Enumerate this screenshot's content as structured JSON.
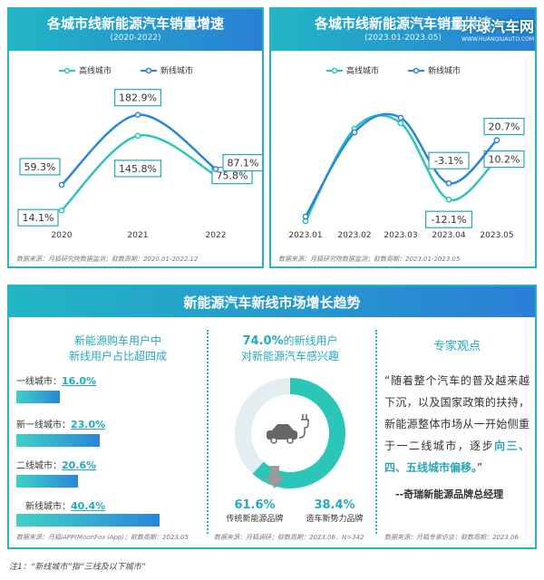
{
  "chart_data": [
    {
      "type": "line",
      "title": "各城市线新能源汽车销量增速",
      "subtitle": "(2020-2022)",
      "categories": [
        "2020",
        "2021",
        "2022"
      ],
      "series": [
        {
          "name": "高线城市",
          "values": [
            14.1,
            145.8,
            75.8
          ],
          "labels": [
            "14.1%",
            "145.8%",
            "75.8%"
          ],
          "color": "#2cc6b8"
        },
        {
          "name": "新线城市",
          "values": [
            59.3,
            182.9,
            87.1
          ],
          "labels": [
            "59.3%",
            "182.9%",
            "87.1%"
          ],
          "color": "#2a86d8"
        }
      ],
      "source": "数据来源：月狐研究院数据监测；取数周期：2020.01-2022.12"
    },
    {
      "type": "line",
      "title": "各城市线新能源汽车销量增速",
      "subtitle": "(2023.01-2023.05)",
      "categories": [
        "2023.01",
        "2023.02",
        "2023.03",
        "2023.04",
        "2023.05"
      ],
      "series": [
        {
          "name": "高线城市",
          "values": [
            null,
            null,
            null,
            -12.1,
            10.2
          ],
          "labels": [
            "",
            "",
            "",
            "-12.1%",
            "10.2%"
          ],
          "color": "#2cc6b8"
        },
        {
          "name": "新线城市",
          "values": [
            null,
            null,
            null,
            -3.1,
            20.7
          ],
          "labels": [
            "",
            "",
            "",
            "-3.1%",
            "20.7%"
          ],
          "color": "#2a86d8"
        }
      ],
      "source": "数据来源：月狐研究院数据监测；取数周期：2023.01-2023.05"
    },
    {
      "type": "bar",
      "title": "新能源购车用户中新线用户占比超四成",
      "categories": [
        "一线城市",
        "新一线城市",
        "二线城市",
        "新线城市"
      ],
      "values": [
        16.0,
        23.0,
        20.6,
        40.4
      ],
      "labels": [
        "16.0%",
        "23.0%",
        "20.6%",
        "40.4%"
      ],
      "source": "数据来源：月狐iAPP(MoonFox iApp)；取数周期：2023.05"
    },
    {
      "type": "pie",
      "title_highlight": "74.0%",
      "title_rest": "的新线用户",
      "title_line2": "对新能源汽车感兴趣",
      "categories": [
        "传统新能源品牌",
        "造车新势力品牌"
      ],
      "values": [
        61.6,
        38.4
      ],
      "labels": [
        "61.6%",
        "38.4%"
      ],
      "colors": [
        "#2cc6b8",
        "#2a86d8"
      ],
      "source": "数据来源：月狐调研；取数周期：2023.06，N=342"
    }
  ],
  "legend": {
    "high": "高线城市",
    "new": "新线城市"
  },
  "panel_bottom": {
    "title": "新能源汽车新线市场增长趋势"
  },
  "cities": [
    {
      "name": "一线城市：",
      "pct": "16.0%",
      "value": 16.0
    },
    {
      "name": "新一线城市：",
      "pct": "23.0%",
      "value": 23.0
    },
    {
      "name": "二线城市：",
      "pct": "20.6%",
      "value": 20.6
    },
    {
      "name": "新线城市：",
      "pct": "40.4%",
      "value": 40.4
    }
  ],
  "bar_title_line1": "新能源购车用户中",
  "bar_title_line2": "新线用户占比超四成",
  "expert": {
    "title": "专家观点",
    "quote_part1": "“随着整个汽车的普及越来越下沉，以及国家政策的扶持，新能源整体市场从一开始侧重于一二线城市，逐步",
    "quote_bold": "向三、四、五线城市偏移。",
    "quote_end": "”",
    "author": "--奇瑞新能源品牌总经理",
    "source": "数据来源：月狐专家访谈；取数周期：2023.06"
  },
  "footnote": "注1：“新线城市”指“三线及以下城市”",
  "watermark": {
    "main": "环球汽车网",
    "sub": "WWW.HUANQIUAUTO.COM"
  },
  "icons": [
    "car-charging-icon",
    "arrow-down-icon"
  ]
}
